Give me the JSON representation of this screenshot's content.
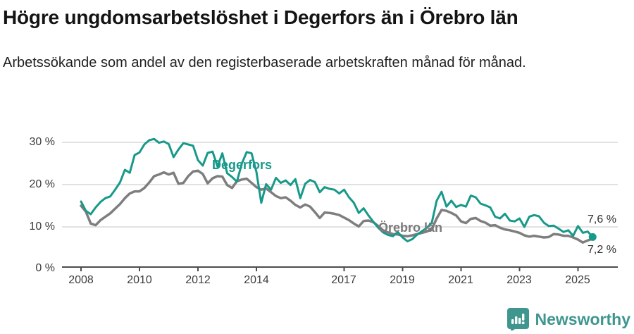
{
  "header": {
    "title": "Högre ungdomsarbetslöshet i Degerfors än i Örebro län",
    "subtitle": "Arbetssökande som andel av den registerbaserade arbetskraften månad för månad."
  },
  "chart_data": {
    "type": "line",
    "unit": "%",
    "x_start_year": 2008,
    "x_step_months": 2,
    "x_end_label_period": "mid-2025",
    "ylim": [
      0,
      33
    ],
    "grid": "horizontal",
    "legend_position": "inline-labels",
    "y_ticks": [
      {
        "label": "30 %",
        "value": 30
      },
      {
        "label": "20 %",
        "value": 20
      },
      {
        "label": "10 %",
        "value": 10
      },
      {
        "label": "0 %",
        "value": 0
      }
    ],
    "x_ticks": [
      {
        "label": "2008",
        "year": 2008
      },
      {
        "label": "2010",
        "year": 2010
      },
      {
        "label": "2012",
        "year": 2012
      },
      {
        "label": "2014",
        "year": 2014
      },
      {
        "label": "2017",
        "year": 2017
      },
      {
        "label": "2019",
        "year": 2019
      },
      {
        "label": "2021",
        "year": 2021
      },
      {
        "label": "2023",
        "year": 2023
      },
      {
        "label": "2025",
        "year": 2025
      }
    ],
    "series": [
      {
        "name": "Degerfors",
        "color": "#17998a",
        "stroke_width": 3,
        "end_label": "7,6 %",
        "end_value": 7.6,
        "values": [
          16.0,
          13.8,
          13.0,
          14.6,
          15.9,
          16.8,
          17.2,
          18.8,
          20.5,
          23.5,
          22.8,
          27.0,
          27.6,
          29.5,
          30.5,
          30.8,
          29.9,
          30.2,
          29.6,
          26.5,
          28.3,
          29.8,
          29.5,
          29.2,
          25.8,
          24.5,
          27.5,
          27.8,
          24.3,
          27.4,
          22.7,
          21.8,
          20.7,
          25.0,
          27.7,
          27.4,
          23.0,
          15.7,
          20.1,
          18.8,
          21.6,
          20.4,
          21.0,
          19.9,
          21.3,
          16.8,
          20.2,
          21.1,
          20.6,
          18.2,
          19.4,
          19.0,
          18.8,
          17.9,
          18.8,
          17.0,
          15.7,
          13.3,
          14.4,
          12.7,
          11.2,
          9.8,
          8.7,
          8.1,
          7.8,
          8.8,
          7.5,
          6.6,
          7.1,
          8.2,
          9.0,
          9.8,
          11.0,
          16.2,
          18.3,
          14.8,
          16.2,
          14.7,
          15.2,
          14.8,
          17.4,
          17.0,
          15.5,
          15.1,
          14.6,
          12.4,
          12.0,
          13.1,
          11.5,
          11.3,
          12.0,
          10.0,
          12.4,
          12.8,
          12.5,
          11.0,
          10.2,
          10.3,
          9.6,
          8.8,
          9.2,
          7.9,
          10.2,
          8.6,
          8.9,
          7.6
        ]
      },
      {
        "name": "Örebro län",
        "color": "#7e7e7e",
        "stroke_width": 3.5,
        "end_label": "7,2 %",
        "end_value": 7.2,
        "values": [
          15.0,
          13.6,
          10.8,
          10.4,
          11.6,
          12.4,
          13.2,
          14.3,
          15.4,
          16.8,
          17.9,
          18.4,
          18.4,
          19.2,
          20.5,
          22.0,
          22.4,
          22.9,
          22.4,
          22.8,
          20.2,
          20.4,
          22.0,
          23.1,
          23.3,
          22.5,
          20.3,
          21.5,
          22.0,
          21.9,
          19.9,
          19.2,
          20.8,
          21.2,
          21.4,
          20.4,
          19.4,
          18.8,
          19.1,
          18.2,
          17.3,
          16.8,
          17.0,
          16.2,
          15.2,
          14.6,
          15.3,
          14.8,
          13.5,
          12.1,
          13.4,
          13.3,
          13.1,
          12.8,
          12.2,
          11.6,
          10.8,
          10.1,
          11.4,
          11.5,
          11.1,
          10.2,
          9.2,
          8.7,
          8.3,
          8.2,
          7.9,
          7.8,
          8.0,
          8.3,
          8.6,
          8.9,
          9.5,
          12.0,
          14.0,
          13.8,
          13.3,
          12.7,
          11.3,
          10.9,
          11.9,
          12.1,
          11.4,
          11.0,
          10.3,
          10.4,
          9.8,
          9.4,
          9.2,
          8.9,
          8.6,
          8.0,
          7.7,
          7.9,
          7.7,
          7.5,
          7.6,
          8.3,
          8.2,
          7.9,
          7.9,
          7.5,
          7.0,
          6.3,
          6.8,
          7.2
        ]
      }
    ],
    "colors": {
      "grid": "#d9d9d9",
      "axis": "#4d4d4d",
      "tick_text": "#3d3d3d"
    }
  },
  "footer": {
    "brand": "Newsworthy",
    "brand_color": "#3f968f"
  }
}
